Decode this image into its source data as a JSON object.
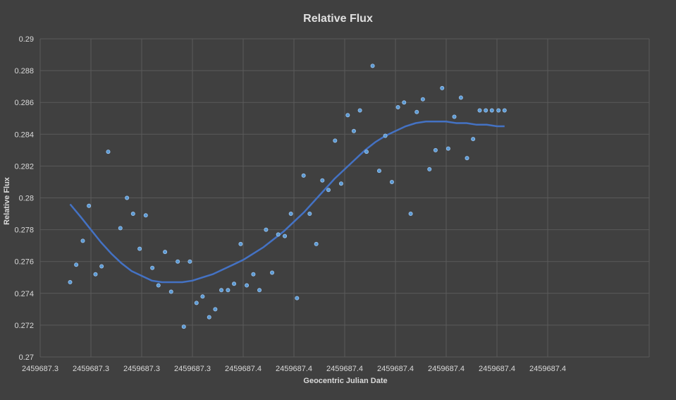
{
  "colors": {
    "background": "#404040",
    "gridline": "#5a5a5a",
    "point_fill": "#5b9bd5",
    "point_glow": "#9ec4ee",
    "trendline": "#4472c4",
    "text": "#d9d9d9"
  },
  "chart_data": {
    "type": "scatter",
    "title": "Relative Flux",
    "xlabel": "Geocentric Julian Date",
    "ylabel": "Relative Flux",
    "xlim": [
      2459687.3,
      2459687.42
    ],
    "ylim": [
      0.27,
      0.29
    ],
    "grid": true,
    "x_tick_values": [
      2459687.3,
      2459687.31,
      2459687.32,
      2459687.33,
      2459687.34,
      2459687.35,
      2459687.36,
      2459687.37,
      2459687.38,
      2459687.39,
      2459687.4
    ],
    "x_tick_labels": [
      "2459687.3",
      "2459687.3",
      "2459687.3",
      "2459687.3",
      "2459687.4",
      "2459687.4",
      "2459687.4",
      "2459687.4",
      "2459687.4",
      "2459687.4",
      "2459687.4"
    ],
    "y_tick_values": [
      0.27,
      0.272,
      0.274,
      0.276,
      0.278,
      0.28,
      0.282,
      0.284,
      0.286,
      0.288,
      0.29
    ],
    "y_tick_labels": [
      "0.27",
      "0.272",
      "0.274",
      "0.276",
      "0.278",
      "0.28",
      "0.282",
      "0.284",
      "0.286",
      "0.288",
      "0.29"
    ],
    "series": [
      {
        "marker": "point",
        "x": [
          2459687.3059,
          2459687.3071,
          2459687.3084,
          2459687.3096,
          2459687.3109,
          2459687.3121,
          2459687.3134,
          2459687.3158,
          2459687.3171,
          2459687.3183,
          2459687.3196,
          2459687.3208,
          2459687.3221,
          2459687.3233,
          2459687.3246,
          2459687.3258,
          2459687.3271,
          2459687.3283,
          2459687.3295,
          2459687.3308,
          2459687.332,
          2459687.3333,
          2459687.3345,
          2459687.3357,
          2459687.337,
          2459687.3382,
          2459687.3395,
          2459687.3407,
          2459687.342,
          2459687.3432,
          2459687.3445,
          2459687.3457,
          2459687.3469,
          2459687.3482,
          2459687.3494,
          2459687.3506,
          2459687.3519,
          2459687.3531,
          2459687.3544,
          2459687.3556,
          2459687.3568,
          2459687.3581,
          2459687.3593,
          2459687.3606,
          2459687.3618,
          2459687.363,
          2459687.3643,
          2459687.3655,
          2459687.3668,
          2459687.368,
          2459687.3693,
          2459687.3705,
          2459687.3717,
          2459687.373,
          2459687.3742,
          2459687.3754,
          2459687.3767,
          2459687.3779,
          2459687.3792,
          2459687.3804,
          2459687.3816,
          2459687.3829,
          2459687.3841,
          2459687.3853,
          2459687.3866,
          2459687.3878,
          2459687.389,
          2459687.3903,
          2459687.3915
        ],
        "y": [
          0.2747,
          0.2758,
          0.2773,
          0.2795,
          0.2752,
          0.2757,
          0.2829,
          0.2781,
          0.28,
          0.279,
          0.2768,
          0.2789,
          0.2756,
          0.2745,
          0.2766,
          0.2741,
          0.276,
          0.2719,
          0.276,
          0.2734,
          0.2738,
          0.2725,
          0.273,
          0.2742,
          0.2742,
          0.2746,
          0.2771,
          0.2745,
          0.2752,
          0.2742,
          0.278,
          0.2753,
          0.2777,
          0.2776,
          0.279,
          0.2737,
          0.2814,
          0.279,
          0.2771,
          0.2811,
          0.2805,
          0.2836,
          0.2809,
          0.2852,
          0.2842,
          0.2855,
          0.2829,
          0.2883,
          0.2817,
          0.2839,
          0.281,
          0.2857,
          0.286,
          0.279,
          0.2854,
          0.2862,
          0.2818,
          0.283,
          0.2869,
          0.2831,
          0.2851,
          0.2863,
          0.2825,
          0.2837,
          0.2855,
          0.2855,
          0.2855,
          0.2855,
          0.2855
        ]
      }
    ],
    "trendline": {
      "type": "polynomial",
      "x": [
        2459687.3059,
        2459687.308,
        2459687.31,
        2459687.312,
        2459687.314,
        2459687.316,
        2459687.318,
        2459687.32,
        2459687.322,
        2459687.324,
        2459687.326,
        2459687.328,
        2459687.33,
        2459687.332,
        2459687.334,
        2459687.336,
        2459687.338,
        2459687.34,
        2459687.342,
        2459687.344,
        2459687.346,
        2459687.348,
        2459687.35,
        2459687.352,
        2459687.354,
        2459687.356,
        2459687.358,
        2459687.36,
        2459687.362,
        2459687.364,
        2459687.366,
        2459687.368,
        2459687.37,
        2459687.372,
        2459687.374,
        2459687.376,
        2459687.378,
        2459687.38,
        2459687.382,
        2459687.384,
        2459687.386,
        2459687.388,
        2459687.39,
        2459687.3915
      ],
      "y": [
        0.2796,
        0.2788,
        0.278,
        0.2772,
        0.2765,
        0.2759,
        0.2754,
        0.2751,
        0.2748,
        0.2747,
        0.2747,
        0.2747,
        0.2748,
        0.275,
        0.2752,
        0.2755,
        0.2758,
        0.2761,
        0.2765,
        0.2769,
        0.2774,
        0.2779,
        0.2785,
        0.2791,
        0.2798,
        0.2805,
        0.2812,
        0.2818,
        0.2824,
        0.283,
        0.2835,
        0.2839,
        0.2842,
        0.2845,
        0.2847,
        0.2848,
        0.2848,
        0.2848,
        0.2847,
        0.2847,
        0.2846,
        0.2846,
        0.2845,
        0.2845
      ]
    }
  }
}
